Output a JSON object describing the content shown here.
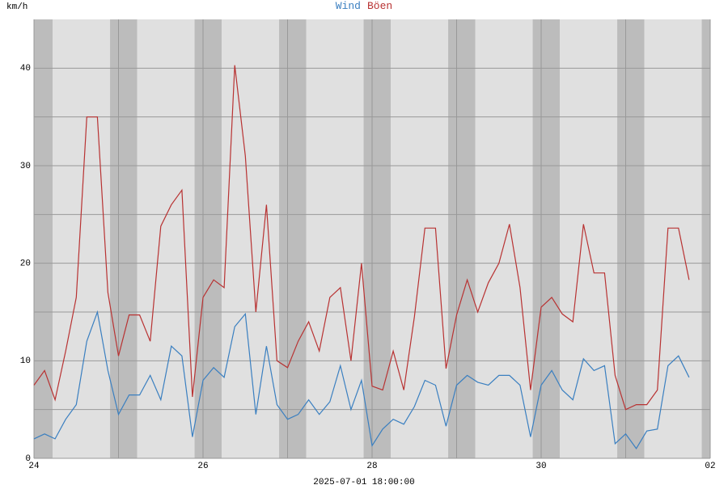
{
  "chart_data": {
    "type": "line",
    "y_unit": "km/h",
    "x_label": "2025-07-01 18:00:00",
    "x": [
      0,
      0.125,
      0.25,
      0.375,
      0.5,
      0.625,
      0.75,
      0.875,
      1,
      1.125,
      1.25,
      1.375,
      1.5,
      1.625,
      1.75,
      1.875,
      2,
      2.125,
      2.25,
      2.375,
      2.5,
      2.625,
      2.75,
      2.875,
      3,
      3.125,
      3.25,
      3.375,
      3.5,
      3.625,
      3.75,
      3.875,
      4,
      4.125,
      4.25,
      4.375,
      4.5,
      4.625,
      4.75,
      4.875,
      5,
      5.125,
      5.25,
      5.375,
      5.5,
      5.625,
      5.75,
      5.875,
      6,
      6.125,
      6.25,
      6.375,
      6.5,
      6.625,
      6.75,
      6.875,
      7,
      7.125,
      7.25,
      7.375,
      7.5,
      7.625,
      7.75
    ],
    "series": [
      {
        "name": "Wind",
        "color": "#3a7fc0",
        "values": [
          2,
          2.5,
          2,
          4,
          5.5,
          12,
          15,
          9,
          4.5,
          6.5,
          6.5,
          8.5,
          6,
          11.5,
          10.5,
          2.2,
          8,
          9.3,
          8.3,
          13.5,
          14.8,
          4.5,
          11.5,
          5.5,
          4,
          4.5,
          6,
          4.5,
          5.8,
          9.5,
          5,
          8,
          1.3,
          3,
          4,
          3.5,
          5.3,
          8,
          7.5,
          3.3,
          7.5,
          8.5,
          7.8,
          7.5,
          8.5,
          8.5,
          7.5,
          2.2,
          7.5,
          9,
          7,
          6,
          10.2,
          9,
          9.5,
          1.5,
          2.5,
          1,
          2.8,
          3,
          9.5,
          10.5,
          8.3
        ]
      },
      {
        "name": "Böen",
        "color": "#b83232",
        "values": [
          7.5,
          9,
          6,
          11,
          16.5,
          35,
          35,
          17,
          10.5,
          14.7,
          14.7,
          12,
          23.8,
          26,
          27.5,
          6.3,
          16.5,
          18.3,
          17.5,
          40.3,
          31,
          15,
          26,
          10,
          9.3,
          12,
          14,
          11,
          16.5,
          17.5,
          10,
          20,
          7.4,
          7,
          11,
          7,
          14.5,
          23.6,
          23.6,
          9.2,
          14.7,
          18.3,
          15,
          18,
          20,
          24,
          17.5,
          7,
          15.5,
          16.5,
          14.8,
          14,
          24,
          19,
          19,
          8.5,
          5,
          5.5,
          5.5,
          7,
          23.6,
          23.6,
          18.3
        ]
      }
    ],
    "xlim": [
      0,
      8
    ],
    "xticks": [
      {
        "value": 0,
        "label": "24"
      },
      {
        "value": 2,
        "label": "26"
      },
      {
        "value": 4,
        "label": "28"
      },
      {
        "value": 6,
        "label": "30"
      },
      {
        "value": 8,
        "label": "02"
      }
    ],
    "x_minor_ticks": [
      1,
      3,
      5,
      7
    ],
    "ylim": [
      0,
      45
    ],
    "yticks": [
      0,
      10,
      20,
      30,
      40
    ],
    "y_minor_ticks": [
      5,
      15,
      25,
      35
    ],
    "grid": true
  }
}
